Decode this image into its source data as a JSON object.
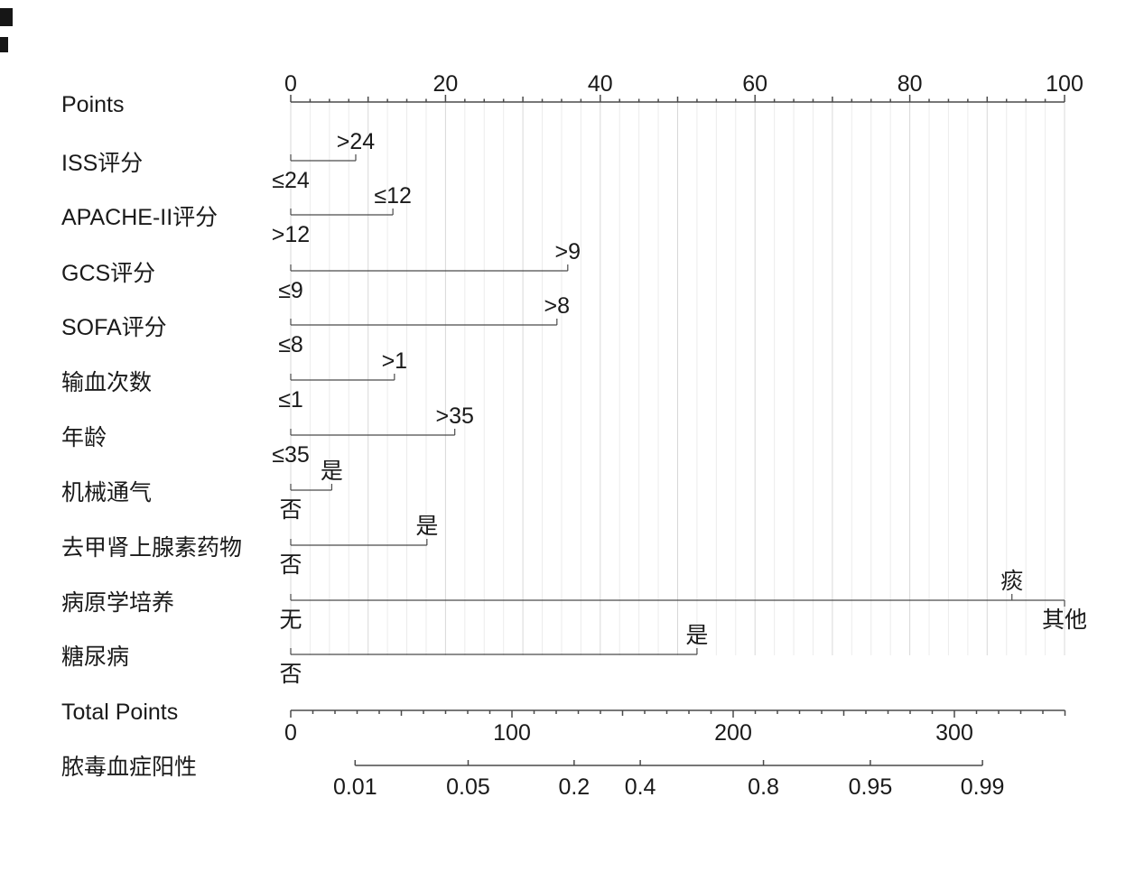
{
  "chart_data": {
    "type": "nomogram",
    "title": "",
    "colors": {
      "background": "#ffffff",
      "axis": "#4a4a4a",
      "text": "#1a1a1a",
      "grid_minor": "#ececec",
      "grid_major": "#d8d8d8"
    },
    "points_axis": {
      "label": "Points",
      "min": 0,
      "max": 100,
      "labeled_ticks": [
        0,
        20,
        40,
        60,
        80,
        100
      ],
      "mid_tick_step": 10,
      "minor_tick_step": 2.5
    },
    "rows": [
      {
        "label": "ISS评分",
        "categories": [
          {
            "text": "≤24",
            "points": 0,
            "label_side": "below"
          },
          {
            "text": ">24",
            "points": 8.4,
            "label_side": "above"
          }
        ]
      },
      {
        "label": "APACHE-II评分",
        "categories": [
          {
            "text": ">12",
            "points": 0,
            "label_side": "below"
          },
          {
            "text": "≤12",
            "points": 13.2,
            "label_side": "above"
          }
        ]
      },
      {
        "label": "GCS评分",
        "categories": [
          {
            "text": "≤9",
            "points": 0,
            "label_side": "below"
          },
          {
            "text": ">9",
            "points": 35.8,
            "label_side": "above"
          }
        ]
      },
      {
        "label": "SOFA评分",
        "categories": [
          {
            "text": "≤8",
            "points": 0,
            "label_side": "below"
          },
          {
            "text": ">8",
            "points": 34.4,
            "label_side": "above"
          }
        ]
      },
      {
        "label": "输血次数",
        "categories": [
          {
            "text": "≤1",
            "points": 0,
            "label_side": "below"
          },
          {
            "text": ">1",
            "points": 13.4,
            "label_side": "above"
          }
        ]
      },
      {
        "label": "年龄",
        "categories": [
          {
            "text": "≤35",
            "points": 0,
            "label_side": "below"
          },
          {
            "text": ">35",
            "points": 21.2,
            "label_side": "above"
          }
        ]
      },
      {
        "label": "机械通气",
        "categories": [
          {
            "text": "否",
            "points": 0,
            "label_side": "below"
          },
          {
            "text": "是",
            "points": 5.3,
            "label_side": "above"
          }
        ]
      },
      {
        "label": "去甲肾上腺素药物",
        "categories": [
          {
            "text": "否",
            "points": 0,
            "label_side": "below"
          },
          {
            "text": "是",
            "points": 17.6,
            "label_side": "above"
          }
        ]
      },
      {
        "label": "病原学培养",
        "categories": [
          {
            "text": "无",
            "points": 0,
            "label_side": "below"
          },
          {
            "text": "痰",
            "points": 93.2,
            "label_side": "above"
          },
          {
            "text": "其他",
            "points": 100,
            "label_side": "below",
            "tick_dir": "down"
          }
        ]
      },
      {
        "label": "糖尿病",
        "categories": [
          {
            "text": "否",
            "points": 0,
            "label_side": "below"
          },
          {
            "text": "是",
            "points": 52.5,
            "label_side": "above"
          }
        ]
      }
    ],
    "total_points_axis": {
      "label": "Total Points",
      "min": 0,
      "max": 350,
      "labeled_ticks": [
        0,
        100,
        200,
        300
      ],
      "mid_tick_step": 50,
      "minor_tick_step": 10
    },
    "probability_axis": {
      "label": "脓毒血症阳性",
      "scale": "logit",
      "ticks": [
        {
          "p": "0.01",
          "total_points": 29.1
        },
        {
          "p": "0.05",
          "total_points": 80.2
        },
        {
          "p": "0.2",
          "total_points": 128.1
        },
        {
          "p": "0.4",
          "total_points": 158
        },
        {
          "p": "0.8",
          "total_points": 213.7
        },
        {
          "p": "0.95",
          "total_points": 262
        },
        {
          "p": "0.99",
          "total_points": 312.7
        }
      ]
    },
    "grid": {
      "shown": true,
      "minor_step": 2.5,
      "major_step": 10
    },
    "artifacts": [
      {
        "x": 0,
        "y": 9,
        "w": 14,
        "h": 20
      },
      {
        "x": 0,
        "y": 41,
        "w": 9,
        "h": 17
      }
    ]
  }
}
